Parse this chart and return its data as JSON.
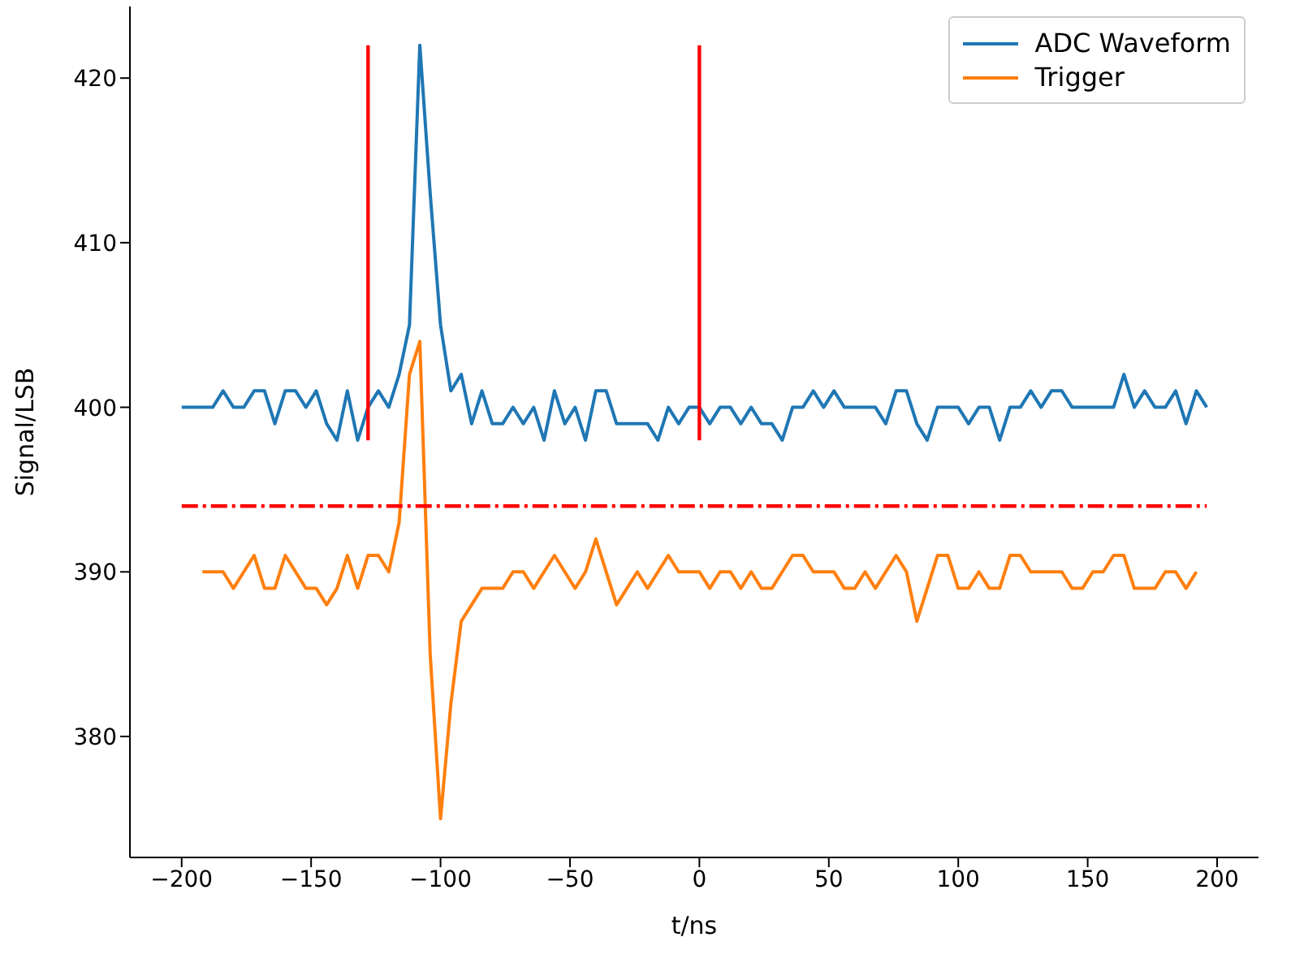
{
  "chart_data": {
    "type": "line",
    "xlabel": "t/ns",
    "ylabel": "Signal/LSB",
    "xlim": [
      -220,
      216
    ],
    "ylim": [
      372.65,
      424.35
    ],
    "xticks": [
      -200,
      -150,
      -100,
      -50,
      0,
      50,
      100,
      150,
      200
    ],
    "yticks": [
      380,
      390,
      400,
      410,
      420
    ],
    "legend": "top right",
    "line_style": "solid",
    "marker": "none",
    "x": [
      -200,
      -196,
      -192,
      -188,
      -184,
      -180,
      -176,
      -172,
      -168,
      -164,
      -160,
      -156,
      -152,
      -148,
      -144,
      -140,
      -136,
      -132,
      -128,
      -124,
      -120,
      -116,
      -112,
      -108,
      -104,
      -100,
      -96,
      -92,
      -88,
      -84,
      -80,
      -76,
      -72,
      -68,
      -64,
      -60,
      -56,
      -52,
      -48,
      -44,
      -40,
      -36,
      -32,
      -28,
      -24,
      -20,
      -16,
      -12,
      -8,
      -4,
      0,
      4,
      8,
      12,
      16,
      20,
      24,
      28,
      32,
      36,
      40,
      44,
      48,
      52,
      56,
      60,
      64,
      68,
      72,
      76,
      80,
      84,
      88,
      92,
      96,
      100,
      104,
      108,
      112,
      116,
      120,
      124,
      128,
      132,
      136,
      140,
      144,
      148,
      152,
      156,
      160,
      164,
      168,
      172,
      176,
      180,
      184,
      188,
      192,
      196
    ],
    "series": [
      {
        "name": "ADC Waveform",
        "color": "#1f77b4",
        "values": [
          400,
          400,
          400,
          400,
          401,
          400,
          400,
          401,
          401,
          399,
          401,
          401,
          400,
          401,
          399,
          398,
          401,
          398,
          400,
          401,
          400,
          402,
          405,
          422,
          413,
          405,
          401,
          402,
          399,
          401,
          399,
          399,
          400,
          399,
          400,
          398,
          401,
          399,
          400,
          398,
          401,
          401,
          399,
          399,
          399,
          399,
          398,
          400,
          399,
          400,
          400,
          399,
          400,
          400,
          399,
          400,
          399,
          399,
          398,
          400,
          400,
          401,
          400,
          401,
          400,
          400,
          400,
          400,
          399,
          401,
          401,
          399,
          398,
          400,
          400,
          400,
          399,
          400,
          400,
          398,
          400,
          400,
          401,
          400,
          401,
          401,
          400,
          400,
          400,
          400,
          400,
          402,
          400,
          401,
          400,
          400,
          401,
          399,
          401,
          400
        ]
      },
      {
        "name": "Trigger",
        "color": "#ff7f0e",
        "x": [
          -192,
          -188,
          -184,
          -180,
          -176,
          -172,
          -168,
          -164,
          -160,
          -156,
          -152,
          -148,
          -144,
          -140,
          -136,
          -132,
          -128,
          -124,
          -120,
          -116,
          -112,
          -108,
          -104,
          -100,
          -96,
          -92,
          -88,
          -84,
          -80,
          -76,
          -72,
          -68,
          -64,
          -60,
          -56,
          -52,
          -48,
          -44,
          -40,
          -36,
          -32,
          -28,
          -24,
          -20,
          -16,
          -12,
          -8,
          -4,
          0,
          4,
          8,
          12,
          16,
          20,
          24,
          28,
          32,
          36,
          40,
          44,
          48,
          52,
          56,
          60,
          64,
          68,
          72,
          76,
          80,
          84,
          88,
          92,
          96,
          100,
          104,
          108,
          112,
          116,
          120,
          124,
          128,
          132,
          136,
          140,
          144,
          148,
          152,
          156,
          160,
          164,
          168,
          172,
          176,
          180,
          184,
          188,
          192
        ],
        "values": [
          390,
          390,
          390,
          389,
          390,
          391,
          389,
          389,
          391,
          390,
          389,
          389,
          388,
          389,
          391,
          389,
          391,
          391,
          390,
          393,
          402,
          404,
          385,
          375,
          382,
          387,
          388,
          389,
          389,
          389,
          390,
          390,
          389,
          390,
          391,
          390,
          389,
          390,
          392,
          390,
          388,
          389,
          390,
          389,
          390,
          391,
          390,
          390,
          390,
          389,
          390,
          390,
          389,
          390,
          389,
          389,
          390,
          391,
          391,
          390,
          390,
          390,
          389,
          389,
          390,
          389,
          390,
          391,
          390,
          387,
          389,
          391,
          391,
          389,
          389,
          390,
          389,
          389,
          391,
          391,
          390,
          390,
          390,
          390,
          389,
          389,
          390,
          390,
          391,
          391,
          389,
          389,
          389,
          390,
          390,
          389,
          390
        ]
      },
      {
        "color": "#ff0000",
        "x": [
          -128,
          -128
        ],
        "values": [
          398,
          422
        ]
      },
      {
        "color": "#ff0000",
        "x": [
          0,
          0
        ],
        "values": [
          398,
          422
        ]
      },
      {
        "color": "#ff0000",
        "x": [
          -200,
          196
        ],
        "values": [
          394,
          394
        ],
        "line_style": "dashdot"
      }
    ]
  }
}
